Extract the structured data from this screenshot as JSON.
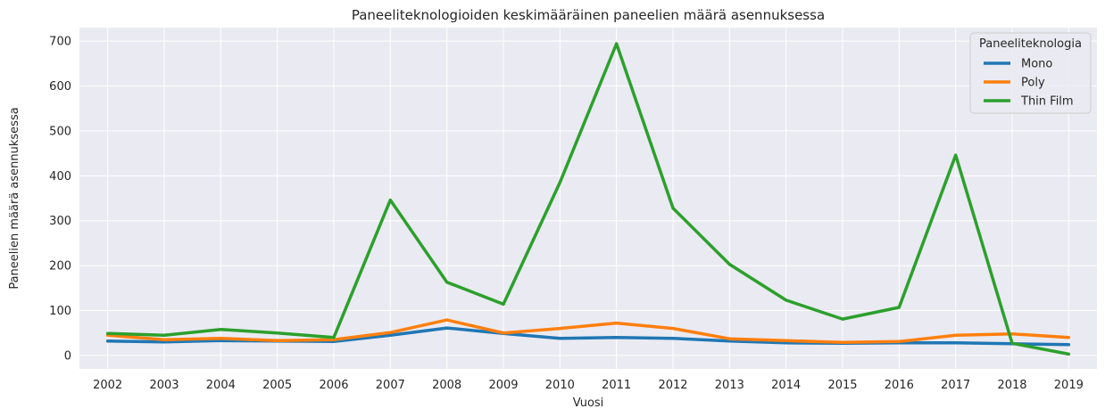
{
  "chart_data": {
    "type": "line",
    "title": "Paneeliteknologioiden keskimääräinen paneelien määrä asennuksessa",
    "xlabel": "Vuosi",
    "ylabel": "Paneelien määrä asennuksessa",
    "x": [
      2002,
      2003,
      2004,
      2005,
      2006,
      2007,
      2008,
      2009,
      2010,
      2011,
      2012,
      2013,
      2014,
      2015,
      2016,
      2017,
      2018,
      2019
    ],
    "x_tick_labels": [
      "2002",
      "2003",
      "2004",
      "2005",
      "2006",
      "2007",
      "2008",
      "2009",
      "2010",
      "2011",
      "2012",
      "2013",
      "2014",
      "2015",
      "2016",
      "2017",
      "2018",
      "2019"
    ],
    "y_ticks": [
      0,
      100,
      200,
      300,
      400,
      500,
      600,
      700
    ],
    "y_tick_labels": [
      "0",
      "100",
      "200",
      "300",
      "400",
      "500",
      "600",
      "700"
    ],
    "ylim": [
      -30,
      730
    ],
    "grid": true,
    "legend_title": "Paneeliteknologia",
    "legend_position": "top-right",
    "series": [
      {
        "name": "Mono",
        "color": "#1f77b4",
        "values": [
          32,
          30,
          33,
          32,
          31,
          45,
          61,
          49,
          38,
          40,
          38,
          32,
          28,
          27,
          28,
          28,
          26,
          24
        ]
      },
      {
        "name": "Poly",
        "color": "#ff7f0e",
        "values": [
          45,
          35,
          38,
          33,
          35,
          51,
          79,
          50,
          60,
          72,
          60,
          37,
          33,
          29,
          31,
          45,
          48,
          40
        ]
      },
      {
        "name": "Thin Film",
        "color": "#2ca02c",
        "values": [
          49,
          45,
          58,
          50,
          40,
          346,
          163,
          114,
          385,
          694,
          328,
          203,
          123,
          81,
          107,
          446,
          27,
          3
        ]
      }
    ]
  }
}
